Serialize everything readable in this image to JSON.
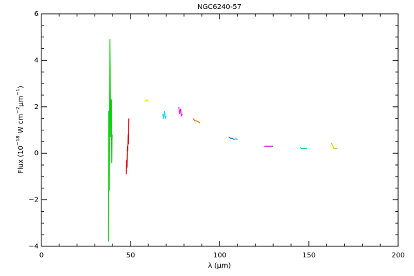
{
  "chart_data": {
    "type": "line",
    "title": "NGC6240-57",
    "xlabel": "λ (μm)",
    "ylabel_parts": [
      "Flux (10",
      "−18",
      " W cm",
      "−2",
      "μm",
      "−1",
      ")"
    ],
    "xlim": [
      0,
      200
    ],
    "ylim": [
      -4,
      6
    ],
    "xticks": [
      0,
      50,
      100,
      150,
      200
    ],
    "yticks": [
      {
        "value": -4,
        "label": "−4"
      },
      {
        "value": -2,
        "label": "−2"
      },
      0,
      2,
      4,
      6
    ],
    "xminorticks": [
      10,
      20,
      30,
      40,
      60,
      70,
      80,
      90,
      110,
      120,
      130,
      140,
      160,
      170,
      180,
      190
    ],
    "yminorticks": [
      -3.5,
      -3,
      -2.5,
      -1.5,
      -1,
      -0.5,
      0.5,
      1,
      1.5,
      2.5,
      3,
      3.5,
      4.5,
      5,
      5.5
    ],
    "series": [
      {
        "color": "#00d000",
        "x": [
          37.6,
          37.8,
          38.0,
          38.2,
          38.4,
          38.6,
          38.8,
          39.0,
          39.2,
          39.4,
          39.6,
          39.8
        ],
        "values": [
          -3.8,
          1.8,
          -1.6,
          1.6,
          4.9,
          3.5,
          0.7,
          1.5,
          2.3,
          -0.4,
          0.6,
          0.8
        ]
      },
      {
        "color": "#e00000",
        "x": [
          47.6,
          47.8,
          48.0,
          48.2,
          48.4,
          48.6,
          48.8,
          49.0
        ],
        "values": [
          -0.9,
          -0.3,
          -0.6,
          0.3,
          0.1,
          0.8,
          0.4,
          1.5
        ]
      },
      {
        "color": "#f0f000",
        "x": [
          58,
          58.5,
          59,
          59.5,
          60
        ],
        "values": [
          2.2,
          2.3,
          2.25,
          2.3,
          2.2
        ]
      },
      {
        "color": "#00e0f0",
        "x": [
          68,
          68.5,
          69,
          69.5,
          70
        ],
        "values": [
          1.7,
          1.5,
          1.8,
          1.5,
          1.6
        ]
      },
      {
        "color": "#ff00ff",
        "x": [
          77,
          77.5,
          78,
          78.5,
          79
        ],
        "values": [
          2.0,
          1.7,
          1.9,
          1.6,
          1.7
        ]
      },
      {
        "color": "#e07000",
        "x": [
          85,
          86,
          87,
          88,
          89
        ],
        "values": [
          1.5,
          1.4,
          1.4,
          1.35,
          1.3
        ]
      },
      {
        "color": "#0080ff",
        "x": [
          105,
          106,
          107,
          108,
          109,
          110
        ],
        "values": [
          0.7,
          0.65,
          0.65,
          0.6,
          0.62,
          0.6
        ]
      },
      {
        "color": "#c000c0",
        "x": [
          125,
          127,
          129,
          130
        ],
        "values": [
          0.3,
          0.3,
          0.3,
          0.3
        ]
      },
      {
        "color": "#00d0a0",
        "x": [
          145,
          146,
          147,
          148,
          149
        ],
        "values": [
          0.25,
          0.2,
          0.2,
          0.2,
          0.2
        ]
      },
      {
        "color": "#d0d000",
        "x": [
          162.5,
          163.5,
          164,
          165,
          166
        ],
        "values": [
          0.45,
          0.3,
          0.2,
          0.2,
          0.2
        ]
      }
    ]
  }
}
